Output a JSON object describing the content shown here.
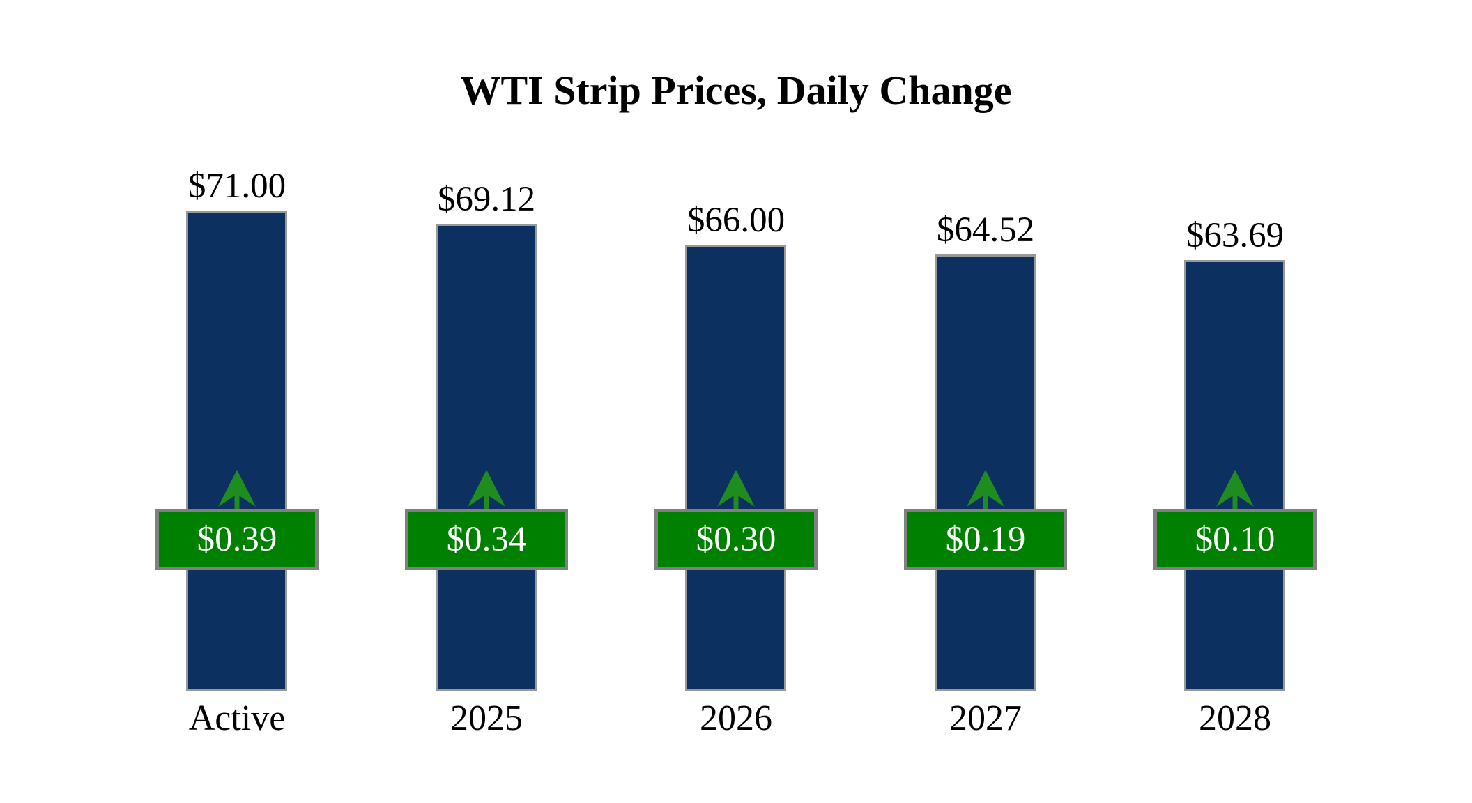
{
  "title": "WTI Strip Prices, Daily Change",
  "colors": {
    "background": "#FFFFFF",
    "bar_fill": "#0C3160",
    "bar_border": "#999999",
    "badge_fill": "#008000",
    "badge_border": "#808080",
    "badge_text": "#FFFFFF",
    "arrow_green": "#1E8C1E",
    "text": "#000000"
  },
  "chart_data": {
    "type": "bar",
    "title": "WTI Strip Prices, Daily Change",
    "categories": [
      "Active",
      "2025",
      "2026",
      "2027",
      "2028"
    ],
    "series": [
      {
        "name": "WTI strip price",
        "values": [
          71.0,
          69.12,
          66.0,
          64.52,
          63.69
        ],
        "labels": [
          "$71.00",
          "$69.12",
          "$66.00",
          "$64.52",
          "$63.69"
        ]
      },
      {
        "name": "Daily change",
        "values": [
          0.39,
          0.34,
          0.3,
          0.19,
          0.1
        ],
        "labels": [
          "$0.39",
          "$0.34",
          "$0.30",
          "$0.19",
          "$0.10"
        ],
        "direction": "up"
      }
    ],
    "ylim": [
      0,
      71
    ],
    "xlabel": "",
    "ylabel": "",
    "grid": false,
    "legend": false,
    "annotations": "green up-arrow above each daily-change badge indicating positive daily change"
  }
}
